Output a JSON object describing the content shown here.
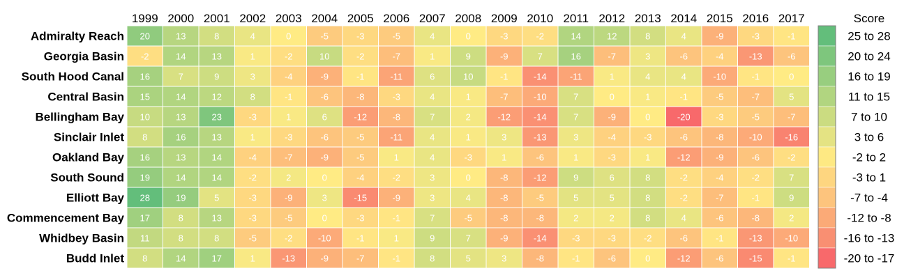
{
  "chart_data": {
    "type": "heatmap",
    "x": [
      "1999",
      "2000",
      "2001",
      "2002",
      "2003",
      "2004",
      "2005",
      "2006",
      "2007",
      "2008",
      "2009",
      "2010",
      "2011",
      "2012",
      "2013",
      "2014",
      "2015",
      "2016",
      "2017"
    ],
    "y": [
      "Admiralty Reach",
      "Georgia Basin",
      "South Hood Canal",
      "Central Basin",
      "Bellingham Bay",
      "Sinclair Inlet",
      "Oakland Bay",
      "South Sound",
      "Elliott Bay",
      "Commencement Bay",
      "Whidbey Basin",
      "Budd Inlet"
    ],
    "values": [
      [
        20,
        13,
        8,
        4,
        0,
        -5,
        -3,
        -5,
        4,
        0,
        -3,
        -2,
        14,
        12,
        8,
        4,
        -9,
        -3,
        -1
      ],
      [
        -2,
        14,
        13,
        1,
        -2,
        10,
        -2,
        -7,
        1,
        9,
        -9,
        7,
        16,
        -7,
        3,
        -6,
        -4,
        -13,
        -6
      ],
      [
        16,
        7,
        9,
        3,
        -4,
        -9,
        -1,
        -11,
        6,
        10,
        -1,
        -14,
        -11,
        1,
        4,
        4,
        -10,
        -1,
        0
      ],
      [
        15,
        14,
        12,
        8,
        -1,
        -6,
        -8,
        -3,
        4,
        1,
        -7,
        -10,
        7,
        0,
        1,
        -1,
        -5,
        -7,
        5
      ],
      [
        10,
        13,
        23,
        -3,
        1,
        6,
        -12,
        -8,
        7,
        2,
        -12,
        -14,
        7,
        -9,
        0,
        -20,
        -3,
        -5,
        -7
      ],
      [
        8,
        16,
        13,
        1,
        -3,
        -6,
        -5,
        -11,
        4,
        1,
        3,
        -13,
        3,
        -4,
        -3,
        -6,
        -8,
        -10,
        -16
      ],
      [
        16,
        13,
        14,
        -4,
        -7,
        -9,
        -5,
        1,
        4,
        -3,
        1,
        -6,
        1,
        -3,
        1,
        -12,
        -9,
        -6,
        -2
      ],
      [
        19,
        14,
        14,
        -2,
        2,
        0,
        -4,
        -2,
        3,
        0,
        -8,
        -12,
        9,
        6,
        8,
        -2,
        -4,
        -2,
        7
      ],
      [
        28,
        19,
        5,
        -3,
        -9,
        3,
        -15,
        -9,
        3,
        4,
        -8,
        -5,
        5,
        5,
        8,
        -2,
        -7,
        -1,
        9
      ],
      [
        17,
        8,
        13,
        -3,
        -5,
        0,
        -3,
        -1,
        7,
        -5,
        -8,
        -8,
        2,
        2,
        8,
        4,
        -6,
        -8,
        2
      ],
      [
        11,
        8,
        8,
        -5,
        -2,
        -10,
        -1,
        1,
        9,
        7,
        -9,
        -14,
        -3,
        -3,
        -2,
        -6,
        -1,
        -13,
        -10
      ],
      [
        8,
        14,
        17,
        1,
        -13,
        -9,
        -7,
        -1,
        8,
        5,
        3,
        -8,
        -1,
        -6,
        0,
        -12,
        -6,
        -15,
        -1
      ]
    ],
    "legend": {
      "title": "Score",
      "placement": "right",
      "bins": [
        {
          "label": "25 to 28",
          "min": 25,
          "max": 28,
          "color": "#63be7b"
        },
        {
          "label": "20 to 24",
          "min": 20,
          "max": 24,
          "color": "#7ec67d"
        },
        {
          "label": "16 to 19",
          "min": 16,
          "max": 19,
          "color": "#98ce7f"
        },
        {
          "label": "11 to 15",
          "min": 11,
          "max": 15,
          "color": "#b1d580"
        },
        {
          "label": "7 to 10",
          "min": 7,
          "max": 10,
          "color": "#cbdc81"
        },
        {
          "label": "3 to 6",
          "min": 3,
          "max": 6,
          "color": "#e4e383"
        },
        {
          "label": "-2 to 2",
          "min": -2,
          "max": 2,
          "color": "#fee983"
        },
        {
          "label": "-3 to 1",
          "min": -3,
          "max": 1,
          "color": "#fed680"
        },
        {
          "label": "-7 to -4",
          "min": -7,
          "max": -4,
          "color": "#fdc47d"
        },
        {
          "label": "-12 to -8",
          "min": -12,
          "max": -8,
          "color": "#fbaa77"
        },
        {
          "label": "-16 to -13",
          "min": -16,
          "max": -13,
          "color": "#f98f72"
        },
        {
          "label": "-20 to -17",
          "min": -20,
          "max": -17,
          "color": "#f8696b"
        }
      ]
    },
    "color_scale": {
      "min": -20,
      "mid": 0,
      "max": 28,
      "min_color": "#f8696b",
      "mid_color": "#ffeb84",
      "max_color": "#63be7b"
    },
    "grid": true
  }
}
